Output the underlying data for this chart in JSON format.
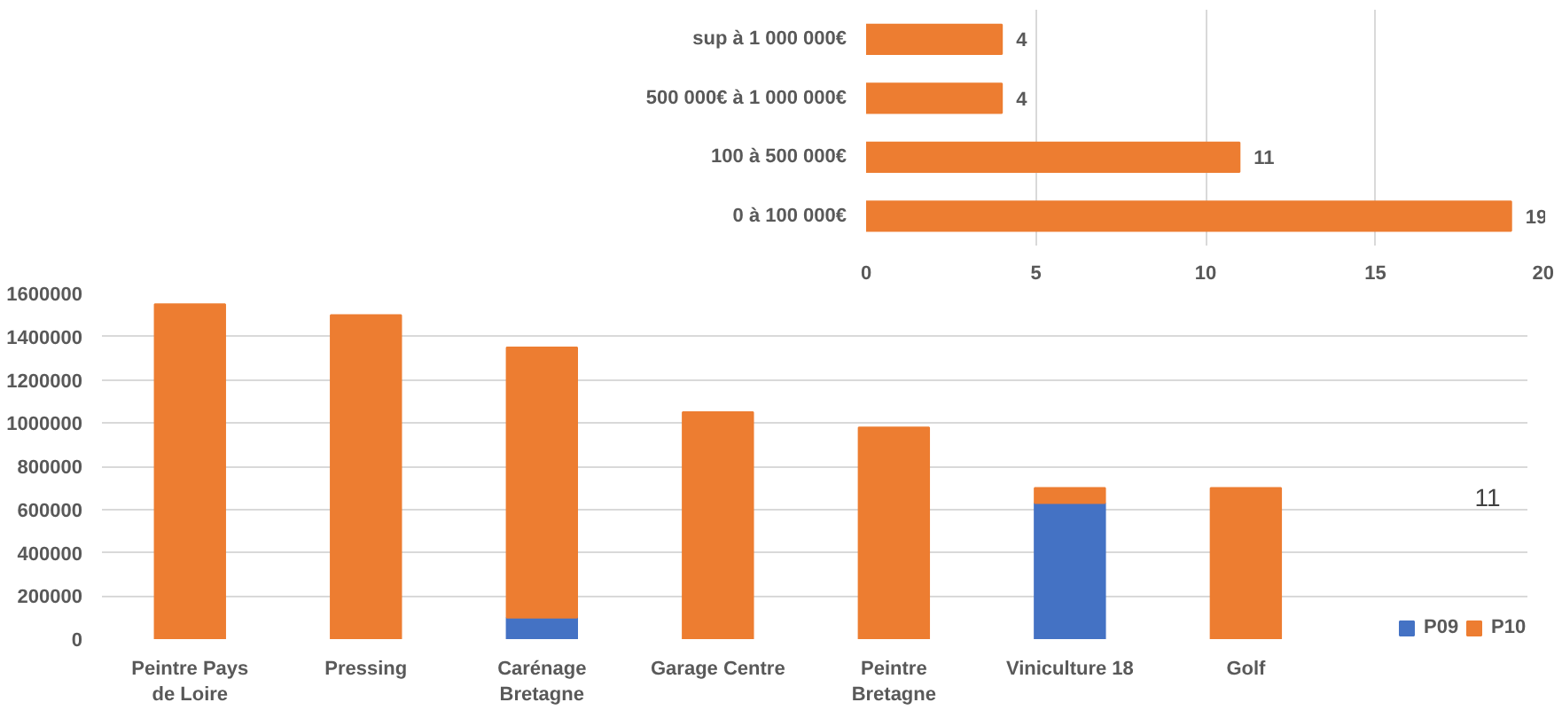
{
  "chart_data": [
    {
      "type": "bar",
      "orientation": "horizontal",
      "categories": [
        "sup à 1 000 000€",
        "500 000€ à 1 000 000€",
        "100 à 500 000€",
        "0 à 100 000€"
      ],
      "series": [
        {
          "color": "#ed7d31",
          "values": [
            4,
            4,
            11,
            19
          ]
        }
      ],
      "xlim": [
        0,
        20
      ],
      "xticks": [
        0,
        5,
        10,
        15,
        20
      ],
      "grid": "x",
      "data_labels": true
    },
    {
      "type": "bar",
      "stacked": true,
      "categories": [
        "Peintre Pays de Loire",
        "Pressing",
        "Carénage Bretagne",
        "Garage Centre",
        "Peintre Bretagne",
        "Viniculture 18",
        "Golf"
      ],
      "series": [
        {
          "name": "P09",
          "color": "#4472c4",
          "values": [
            null,
            null,
            100000,
            null,
            null,
            630000,
            null
          ]
        },
        {
          "name": "P10",
          "color": "#ed7d31",
          "values": [
            1550000,
            1500000,
            1250000,
            1050000,
            980000,
            70000,
            700000
          ]
        }
      ],
      "ylim": [
        0,
        1600000
      ],
      "yticks": [
        0,
        200000,
        400000,
        600000,
        800000,
        1000000,
        1200000,
        1400000,
        1600000
      ],
      "grid": "y",
      "legend": "bottom right",
      "annotations": [
        "11"
      ]
    }
  ]
}
